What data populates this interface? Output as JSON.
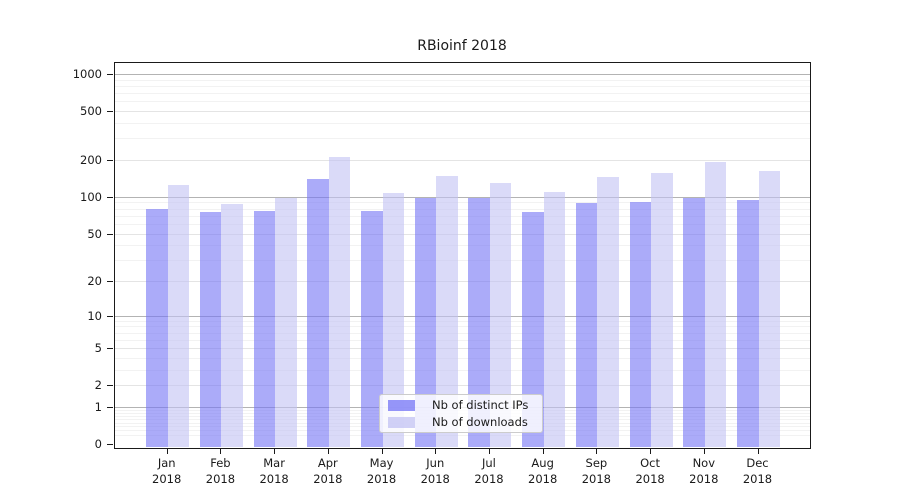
{
  "title": "RBioinf 2018",
  "legend": {
    "items": [
      {
        "label": "Nb of distinct IPs",
        "color": "#7373f5"
      },
      {
        "label": "Nb of downloads",
        "color": "#c1c1f3"
      }
    ]
  },
  "chart_data": {
    "type": "bar",
    "title": "RBioinf 2018",
    "categories": [
      "Jan 2018",
      "Feb 2018",
      "Mar 2018",
      "Apr 2018",
      "May 2018",
      "Jun 2018",
      "Jul 2018",
      "Aug 2018",
      "Sep 2018",
      "Oct 2018",
      "Nov 2018",
      "Dec 2018"
    ],
    "series": [
      {
        "name": "Nb of distinct IPs",
        "color": "#7373f5",
        "values": [
          80,
          75,
          77,
          140,
          77,
          97,
          97,
          75,
          89,
          90,
          97,
          94
        ]
      },
      {
        "name": "Nb of downloads",
        "color": "#c1c1f3",
        "values": [
          126,
          88,
          98,
          210,
          108,
          147,
          130,
          110,
          145,
          157,
          193,
          164
        ]
      }
    ],
    "xlabel": "",
    "ylabel": "",
    "yscale": "log1p",
    "yticks": [
      0,
      1,
      2,
      5,
      10,
      20,
      50,
      100,
      200,
      500,
      1000
    ],
    "ylim": [
      0,
      1250
    ],
    "grid": true,
    "legend_position": "lower center inside",
    "colors": {
      "grid_major": "#b3b3b3",
      "grid_mid": "#e4e4e4",
      "grid_minor": "#f2f2f2",
      "axis": "#1a1a1a"
    }
  }
}
